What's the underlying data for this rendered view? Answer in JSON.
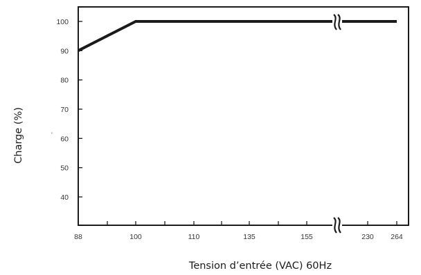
{
  "chart_data": {
    "type": "line",
    "title": "",
    "xlabel": "Tension d’entrée (VAC) 60Hz",
    "ylabel": "Charge (%)",
    "x_ticks": [
      "88",
      "100",
      "110",
      "135",
      "155",
      "230",
      "264"
    ],
    "y_ticks": [
      "100",
      "90",
      "80",
      "70",
      "60",
      "50",
      "40"
    ],
    "ylim": [
      30,
      105
    ],
    "axis_break": "x between 155 and 230",
    "grid": false,
    "series": [
      {
        "points": [
          {
            "x": 88,
            "y": 90
          },
          {
            "x": 100,
            "y": 100
          },
          {
            "x": 264,
            "y": 100
          }
        ]
      }
    ]
  }
}
